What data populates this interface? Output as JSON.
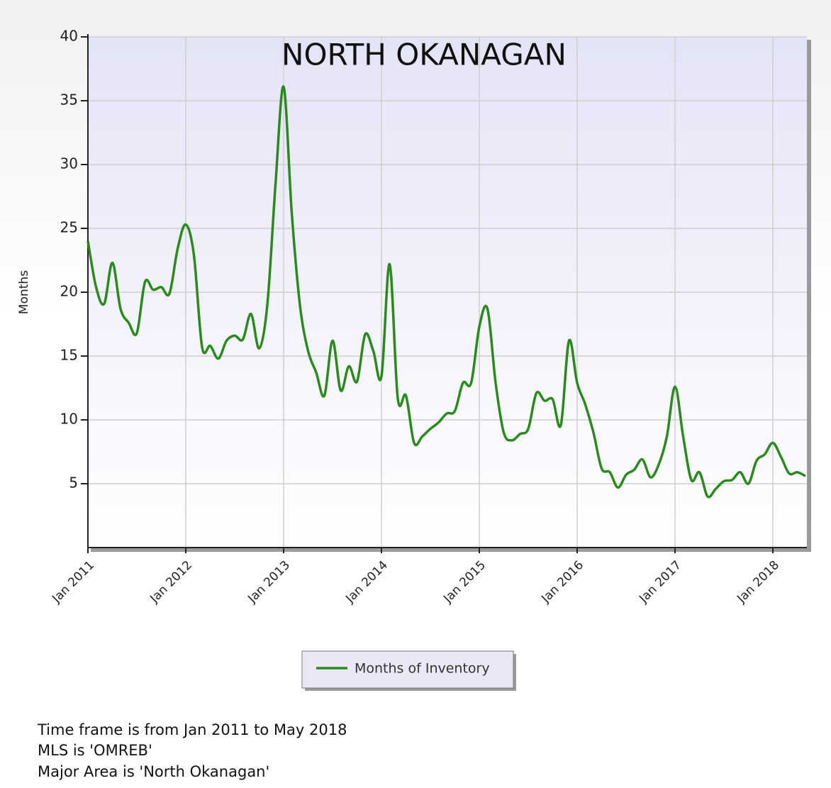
{
  "chart_data": {
    "type": "line",
    "title": "NORTH OKANAGAN",
    "y_label": "Months",
    "categories": [
      "Jan 2011",
      null,
      null,
      null,
      null,
      null,
      null,
      null,
      null,
      null,
      null,
      null,
      "Jan 2012",
      null,
      null,
      null,
      null,
      null,
      null,
      null,
      null,
      null,
      null,
      null,
      "Jan 2013",
      null,
      null,
      null,
      null,
      null,
      null,
      null,
      null,
      null,
      null,
      null,
      "Jan 2014",
      null,
      null,
      null,
      null,
      null,
      null,
      null,
      null,
      null,
      null,
      null,
      "Jan 2015",
      null,
      null,
      null,
      null,
      null,
      null,
      null,
      null,
      null,
      null,
      null,
      "Jan 2016",
      null,
      null,
      null,
      null,
      null,
      null,
      null,
      null,
      null,
      null,
      null,
      "Jan 2017",
      null,
      null,
      null,
      null,
      null,
      null,
      null,
      null,
      null,
      null,
      null,
      "Jan 2018",
      null,
      null,
      null,
      null
    ],
    "series": [
      {
        "name": "Months of Inventory",
        "color": "#2b8a1e",
        "values": [
          24.0,
          20.4,
          19.1,
          22.3,
          18.7,
          17.6,
          16.8,
          20.8,
          20.2,
          20.4,
          19.9,
          23.4,
          25.3,
          22.9,
          15.7,
          15.8,
          14.8,
          16.2,
          16.6,
          16.3,
          18.3,
          15.6,
          19.0,
          28.4,
          36.1,
          26.2,
          19.0,
          15.4,
          13.7,
          11.9,
          16.2,
          12.3,
          14.2,
          13.0,
          16.7,
          15.4,
          13.4,
          22.2,
          11.7,
          11.9,
          8.2,
          8.7,
          9.3,
          9.8,
          10.5,
          10.7,
          12.9,
          12.9,
          17.3,
          18.7,
          12.9,
          9.0,
          8.4,
          8.9,
          9.3,
          12.1,
          11.5,
          11.6,
          9.6,
          16.2,
          12.9,
          11.2,
          9.0,
          6.2,
          5.9,
          4.7,
          5.7,
          6.1,
          6.9,
          5.5,
          6.5,
          8.7,
          12.6,
          8.7,
          5.3,
          5.9,
          4.0,
          4.6,
          5.2,
          5.3,
          5.9,
          5.0,
          6.8,
          7.3,
          8.2,
          7.1,
          5.8,
          5.9,
          5.6
        ]
      }
    ],
    "ylim": [
      0,
      40
    ],
    "yticks": [
      5,
      10,
      15,
      20,
      25,
      30,
      35,
      40
    ],
    "grid": true,
    "legend": "bottom"
  },
  "notes": [
    "Time frame is from Jan 2011 to May 2018",
    "MLS is 'OMREB'",
    "Major Area is 'North Okanagan'"
  ]
}
